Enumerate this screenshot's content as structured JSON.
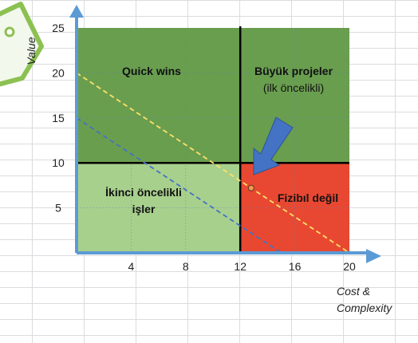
{
  "chart_data": {
    "type": "scatter",
    "xlabel_lines": [
      "Cost &",
      "Complexity"
    ],
    "ylabel": "Value",
    "xlim": [
      0,
      20
    ],
    "ylim": [
      0,
      25
    ],
    "xticks": [
      4,
      8,
      12,
      16,
      20
    ],
    "yticks": [
      5,
      10,
      15,
      20,
      25
    ],
    "grid": false,
    "quadrants": [
      {
        "name": "quick-wins",
        "x": [
          0,
          12
        ],
        "y": [
          10,
          25
        ],
        "color": "#6a9e4f",
        "lines": [
          "Quick wins"
        ]
      },
      {
        "name": "buyuk-projeler",
        "x": [
          12,
          20
        ],
        "y": [
          10,
          25
        ],
        "color": "#6a9e4f",
        "lines": [
          "Büyük projeler",
          "(ilk öncelikli)"
        ]
      },
      {
        "name": "ikinci-oncelikli",
        "x": [
          0,
          12
        ],
        "y": [
          0,
          10
        ],
        "color": "#a8d08d",
        "lines": [
          "İkinci öncelikli",
          "işler"
        ]
      },
      {
        "name": "fizibil-degil",
        "x": [
          12,
          20
        ],
        "y": [
          0,
          10
        ],
        "color": "#e84832",
        "lines": [
          "Fizibıl değil"
        ]
      }
    ],
    "divider_x": 12,
    "divider_y": 10,
    "dashed_lines": [
      {
        "name": "yellow-threshold-line",
        "color": "#ffe066",
        "points": [
          [
            0,
            20
          ],
          [
            20,
            0
          ]
        ]
      },
      {
        "name": "blue-threshold-line",
        "color": "#4472c4",
        "points": [
          [
            0,
            15
          ],
          [
            15,
            0
          ]
        ]
      }
    ],
    "point": {
      "x": 12.8,
      "y": 7.2
    },
    "arrow_color": "#4472c4"
  }
}
